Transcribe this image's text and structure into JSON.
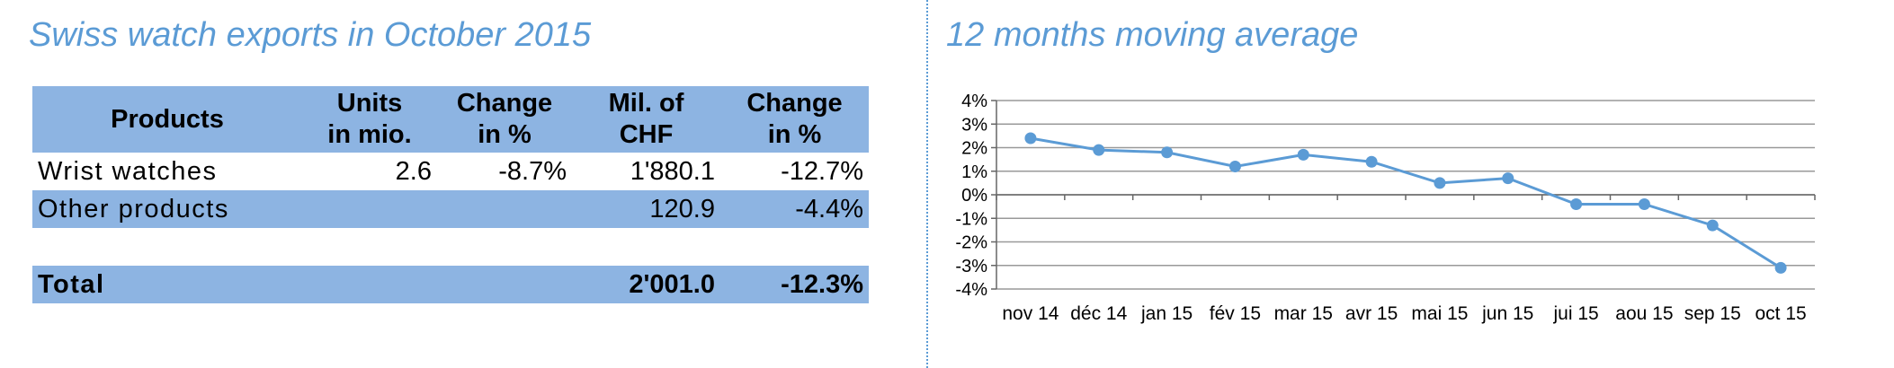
{
  "left_panel": {
    "title": "Swiss watch exports in October 2015",
    "table": {
      "headers": [
        {
          "line1": "Products",
          "line2": ""
        },
        {
          "line1": "Units",
          "line2": "in mio."
        },
        {
          "line1": "Change",
          "line2": "in %"
        },
        {
          "line1": "Mil. of",
          "line2": "CHF"
        },
        {
          "line1": "Change",
          "line2": "in %"
        }
      ],
      "rows": [
        {
          "product": "Wrist watches",
          "units": "2.6",
          "units_change": "-8.7%",
          "chf": "1'880.1",
          "chf_change": "-12.7%"
        },
        {
          "product": "Other products",
          "units": "",
          "units_change": "",
          "chf": "120.9",
          "chf_change": "-4.4%"
        }
      ],
      "total": {
        "product": "Total",
        "units": "",
        "units_change": "",
        "chf": "2'001.0",
        "chf_change": "-12.3%"
      }
    }
  },
  "right_panel": {
    "title": "12 months moving average"
  },
  "colors": {
    "accent": "#5b9bd5",
    "table_fill": "#8db4e2",
    "series": "#5b9bd5",
    "grid": "#999999"
  },
  "chart_data": {
    "type": "line",
    "title": "12 months moving average",
    "xlabel": "",
    "ylabel": "",
    "x": [
      "nov 14",
      "déc 14",
      "jan 15",
      "fév 15",
      "mar 15",
      "avr 15",
      "mai 15",
      "jun 15",
      "jui 15",
      "aou 15",
      "sep 15",
      "oct 15"
    ],
    "series": [
      {
        "values": [
          2.4,
          1.9,
          1.8,
          1.2,
          1.7,
          1.4,
          0.5,
          0.7,
          -0.4,
          -0.4,
          -1.3,
          -3.1
        ]
      }
    ],
    "ylim": [
      -4,
      4
    ],
    "yticks": [
      "4%",
      "3%",
      "2%",
      "1%",
      "0%",
      "-1%",
      "-2%",
      "-3%",
      "-4%"
    ],
    "grid": true,
    "legend": "none"
  }
}
